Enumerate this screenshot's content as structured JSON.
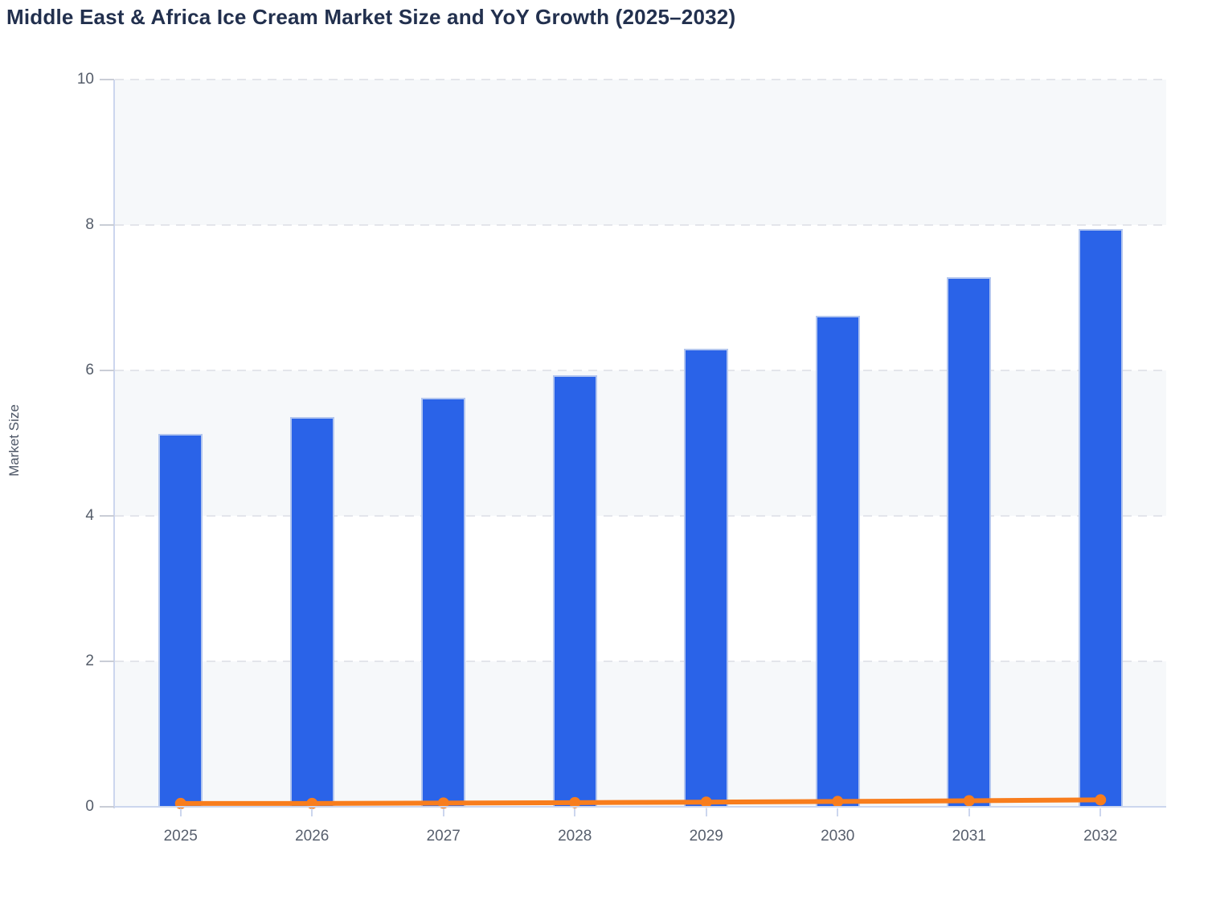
{
  "header": {
    "title": "Middle East & Africa Ice Cream Market Size and YoY Growth (2025–2032)"
  },
  "chart_data": {
    "type": "bar",
    "title": "Middle East & Africa Ice Cream Market Size and YoY Growth (2025–2032)",
    "categories": [
      "2025",
      "2026",
      "2027",
      "2028",
      "2029",
      "2030",
      "2031",
      "2032"
    ],
    "series": [
      {
        "name": "Market Size",
        "type": "bar",
        "color": "#2a63e8",
        "values": [
          5.13,
          5.36,
          5.62,
          5.93,
          6.3,
          6.75,
          7.28,
          7.95
        ]
      },
      {
        "name": "YoY Growth",
        "type": "line",
        "color": "#f87d1d",
        "values": [
          0.045,
          0.046,
          0.051,
          0.057,
          0.064,
          0.073,
          0.083,
          0.095
        ]
      }
    ],
    "xlabel": "",
    "ylabel": "Market Size",
    "ylim": [
      0,
      10
    ],
    "yticks": [
      0,
      2,
      4,
      6,
      8,
      10
    ],
    "grid": "horizontal dashed gridlines at each y tick",
    "legend": "none",
    "background": "alternating horizontal bands (light gray / white) between y ticks"
  },
  "colors": {
    "bar_fill": "#2a63e8",
    "bar_edge": "#cbd7f0",
    "line_stroke": "#f87d1d",
    "marker_fill": "#f87d1d",
    "band_fill": "#f6f8fa",
    "gridline": "#e3e5eb",
    "axis_line": "#ccd6ee",
    "tick_mark": "#c9cdd6",
    "tick_label": "#565e6c",
    "title_text": "#22304e",
    "axis_title_text": "#4c5565",
    "page_background": "#ffffff"
  }
}
